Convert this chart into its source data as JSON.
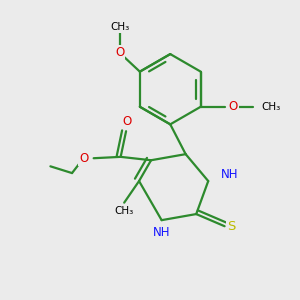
{
  "background_color": "#ebebeb",
  "bond_color": "#2d8a2d",
  "N_color": "#1414ff",
  "O_color": "#dd0000",
  "S_color": "#bbbb00",
  "lw": 1.6,
  "fs": 8.5,
  "fig_size": [
    3.0,
    3.0
  ],
  "dpi": 100,
  "xlim": [
    -1.8,
    2.2
  ],
  "ylim": [
    -2.0,
    2.4
  ]
}
